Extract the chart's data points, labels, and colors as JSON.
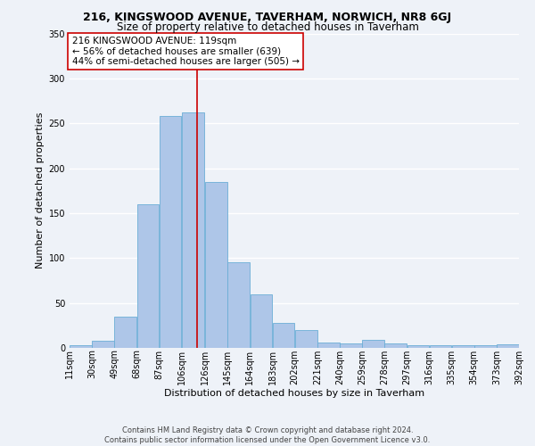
{
  "title1": "216, KINGSWOOD AVENUE, TAVERHAM, NORWICH, NR8 6GJ",
  "title2": "Size of property relative to detached houses in Taverham",
  "xlabel": "Distribution of detached houses by size in Taverham",
  "ylabel": "Number of detached properties",
  "footer1": "Contains HM Land Registry data © Crown copyright and database right 2024.",
  "footer2": "Contains public sector information licensed under the Open Government Licence v3.0.",
  "annotation_line1": "216 KINGSWOOD AVENUE: 119sqm",
  "annotation_line2": "← 56% of detached houses are smaller (639)",
  "annotation_line3": "44% of semi-detached houses are larger (505) →",
  "property_size": 119,
  "bin_edges": [
    11,
    30,
    49,
    68,
    87,
    106,
    126,
    145,
    164,
    183,
    202,
    221,
    240,
    259,
    278,
    297,
    316,
    335,
    354,
    373,
    392
  ],
  "bin_labels": [
    "11sqm",
    "30sqm",
    "49sqm",
    "68sqm",
    "87sqm",
    "106sqm",
    "126sqm",
    "145sqm",
    "164sqm",
    "183sqm",
    "202sqm",
    "221sqm",
    "240sqm",
    "259sqm",
    "278sqm",
    "297sqm",
    "316sqm",
    "335sqm",
    "354sqm",
    "373sqm",
    "392sqm"
  ],
  "bar_heights": [
    3,
    8,
    35,
    160,
    258,
    262,
    185,
    95,
    60,
    28,
    20,
    6,
    5,
    9,
    5,
    3,
    3,
    3,
    3,
    4
  ],
  "bar_color": "#aec6e8",
  "bar_edge_color": "#6baed6",
  "vline_x": 119,
  "vline_color": "#cc0000",
  "ylim": [
    0,
    350
  ],
  "yticks": [
    0,
    50,
    100,
    150,
    200,
    250,
    300,
    350
  ],
  "bg_color": "#eef2f8",
  "grid_color": "#ffffff",
  "annotation_box_color": "#ffffff",
  "annotation_box_edge": "#cc0000",
  "title1_fontsize": 9,
  "title2_fontsize": 8.5,
  "xlabel_fontsize": 8,
  "ylabel_fontsize": 8,
  "tick_fontsize": 7,
  "footer_fontsize": 6,
  "annot_fontsize": 7.5
}
